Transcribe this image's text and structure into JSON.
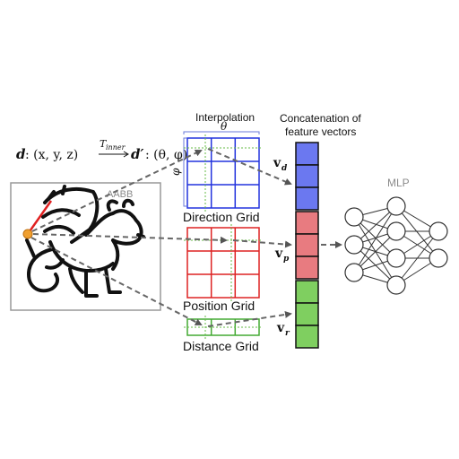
{
  "formula": {
    "d": "d",
    "d_coords": ": (x, y, z)",
    "arrow_label": "T",
    "arrow_label_sub": "inner",
    "d_prime": "d′",
    "d_prime_coords": ": (θ, φ)"
  },
  "interpolation_label": "Interpolation",
  "theta_label": "θ",
  "phi_label": "φ",
  "aabb_label": "AABB",
  "grids": {
    "direction": {
      "label": "Direction Grid",
      "color": "#2233dd"
    },
    "position": {
      "label": "Position Grid",
      "color": "#dd2222"
    },
    "distance": {
      "label": "Distance Grid",
      "color": "#44aa33"
    }
  },
  "concat_label_line1": "Concatenation of",
  "concat_label_line2": "feature vectors",
  "vectors": {
    "vd": {
      "main": "v",
      "sub": "d"
    },
    "vp": {
      "main": "v",
      "sub": "p"
    },
    "vr": {
      "main": "v",
      "sub": "r"
    }
  },
  "feature_colors": {
    "direction": "#6b78f0",
    "position": "#e87b80",
    "distance": "#7fcf60"
  },
  "mlp_label": "MLP"
}
